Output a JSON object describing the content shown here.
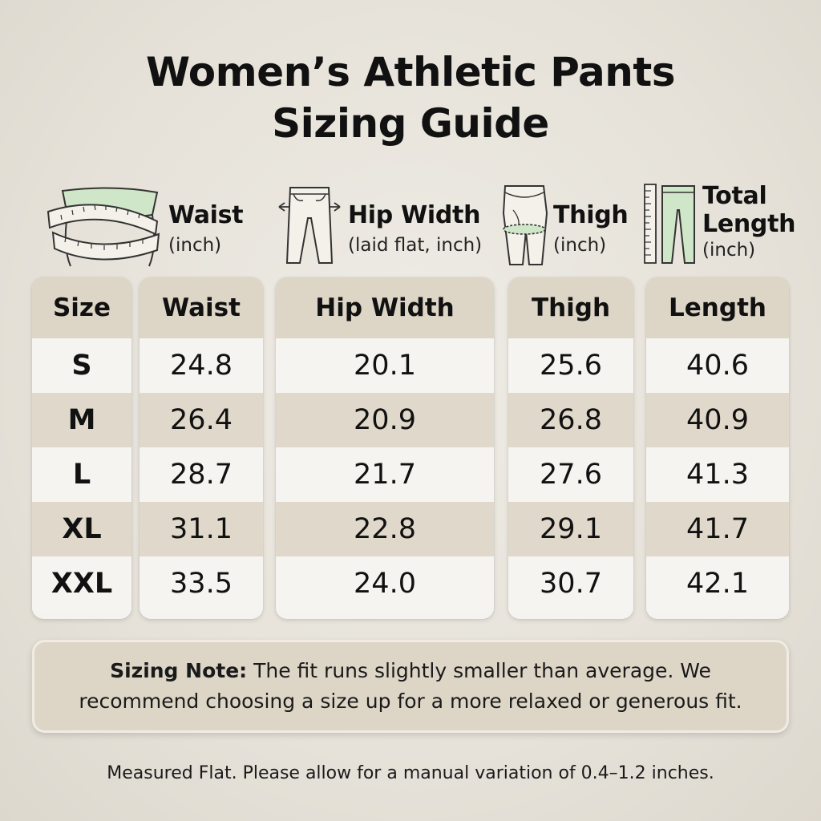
{
  "title": {
    "line1": "Women’s Athletic Pants",
    "line2": "Sizing Guide"
  },
  "measures": [
    {
      "icon": "waist-tape-icon",
      "label": "Waist",
      "sub": "(inch)"
    },
    {
      "icon": "hip-width-pants-icon",
      "label": "Hip Width",
      "sub": "(laid flat, inch)"
    },
    {
      "icon": "thigh-measure-icon",
      "label": "Thigh",
      "sub": "(inch)"
    },
    {
      "icon": "total-length-ruler-icon",
      "label": "Total",
      "label2": "Length",
      "sub": "(inch)"
    }
  ],
  "table": {
    "headers": [
      "Size",
      "Waist",
      "Hip Width",
      "Thigh",
      "Length"
    ],
    "rows": [
      [
        "S",
        "24.8",
        "20.1",
        "25.6",
        "40.6"
      ],
      [
        "M",
        "26.4",
        "20.9",
        "26.8",
        "40.9"
      ],
      [
        "L",
        "28.7",
        "21.7",
        "27.6",
        "41.3"
      ],
      [
        "XL",
        "31.1",
        "22.8",
        "29.1",
        "41.7"
      ],
      [
        "XXL",
        "33.5",
        "24.0",
        "30.7",
        "42.1"
      ]
    ]
  },
  "note": {
    "label": "Sizing Note:",
    "text": "The fit runs slightly smaller than average. We recommend choosing a size up for a more relaxed or generous fit."
  },
  "footer": "Measured Flat. Please allow for a manual variation of 0.4–1.2 inches.",
  "colors": {
    "header_bg": "#ddd5c6",
    "row_light": "#f6f4f0",
    "row_dark": "#e0d9cb",
    "accent_green": "#cfe6c8"
  }
}
